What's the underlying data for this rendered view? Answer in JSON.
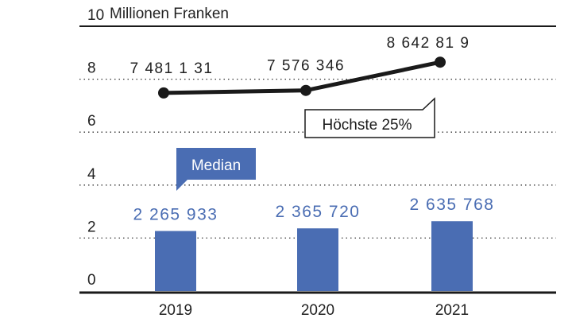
{
  "chart_data": {
    "type": "bar",
    "unit_label": "Millionen Franken",
    "ylim": [
      0,
      10
    ],
    "yticks": [
      "0",
      "2",
      "4",
      "6",
      "8",
      "10"
    ],
    "grid": "dotted horizontal",
    "categories": [
      "2019",
      "2020",
      "2021"
    ],
    "series": [
      {
        "name": "Median",
        "type": "bar",
        "values": [
          2265933,
          2365720,
          2635768
        ],
        "labels": [
          "2 265 933",
          "2 365 720",
          "2 635 768"
        ],
        "color": "#4a6db3"
      },
      {
        "name": "Höchste 25%",
        "type": "line",
        "values": [
          7481131,
          7576346,
          8642819
        ],
        "labels": [
          "7 481 1 31",
          "7 576 346",
          "8 642 81 9"
        ],
        "color": "#1a1a1a"
      }
    ]
  }
}
